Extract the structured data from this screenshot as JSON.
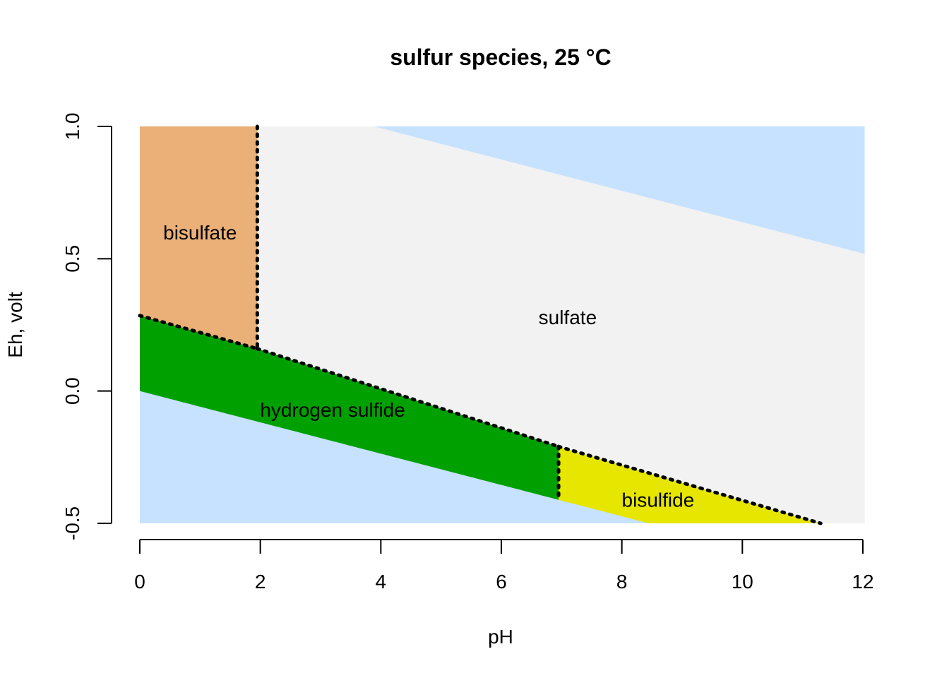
{
  "chart_data": {
    "type": "area",
    "title": "sulfur species, 25 °C",
    "xlabel": "pH",
    "ylabel": "Eh, volt",
    "xlim": [
      0,
      12
    ],
    "ylim": [
      -0.5,
      1.0
    ],
    "x_ticks": [
      "0",
      "2",
      "4",
      "6",
      "8",
      "10",
      "12"
    ],
    "y_ticks": [
      "-0.5",
      "0.0",
      "0.5",
      "1.0"
    ],
    "colors": {
      "water_instability": "#C6E2FF",
      "bisulfate": "#EBB077",
      "sulfate": "#F2F2F2",
      "hydrogen_sulfide": "#00A000",
      "bisulfide": "#E6E600",
      "boundary": "#000000"
    },
    "water_limits": {
      "oxygen_line": [
        [
          0,
          1.23
        ],
        [
          12,
          0.52
        ]
      ],
      "hydrogen_line": [
        [
          0,
          0.0
        ],
        [
          12,
          -0.71
        ]
      ]
    },
    "fields": [
      {
        "label": "bisulfate",
        "label_pos": [
          1.0,
          0.6
        ]
      },
      {
        "label": "sulfate",
        "label_pos": [
          7.1,
          0.28
        ]
      },
      {
        "label": "hydrogen sulfide",
        "label_pos": [
          3.2,
          -0.07
        ]
      },
      {
        "label": "bisulfide",
        "label_pos": [
          8.6,
          -0.41
        ]
      }
    ],
    "boundaries": [
      {
        "from": "bisulfate",
        "to": "sulfate",
        "points": [
          [
            1.95,
            1.0
          ],
          [
            1.95,
            0.16
          ]
        ]
      },
      {
        "from": "bisulfate",
        "to": "hydrogen sulfide",
        "points": [
          [
            0,
            0.285
          ],
          [
            1.95,
            0.16
          ]
        ]
      },
      {
        "from": "sulfate",
        "to": "hydrogen sulfide",
        "points": [
          [
            1.95,
            0.16
          ],
          [
            6.95,
            -0.21
          ]
        ]
      },
      {
        "from": "hydrogen sulfide",
        "to": "bisulfide",
        "points": [
          [
            6.95,
            -0.21
          ],
          [
            6.95,
            -0.41
          ]
        ]
      },
      {
        "from": "sulfate",
        "to": "bisulfide",
        "points": [
          [
            6.95,
            -0.21
          ],
          [
            11.3,
            -0.5
          ]
        ]
      }
    ]
  }
}
